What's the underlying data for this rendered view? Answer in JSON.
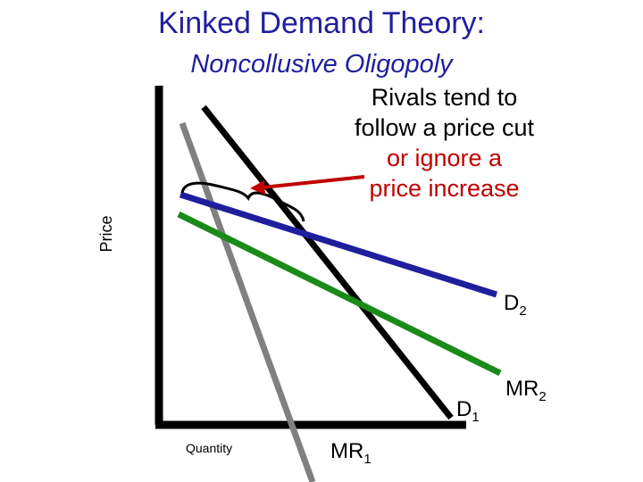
{
  "title": "Kinked Demand Theory:",
  "subtitle": "Noncollusive Oligopoly",
  "note": {
    "line1": "Rivals tend to",
    "line2": "follow a price cut",
    "line3": "or ignore a",
    "line4": "price increase"
  },
  "axes": {
    "y_label": "Price",
    "x_label": "Quantity"
  },
  "curves": {
    "d2": {
      "label": "D",
      "sub": "2",
      "color": "#1f1f9e"
    },
    "mr2": {
      "label": "MR",
      "sub": "2",
      "color": "#1a8a1a"
    },
    "d1": {
      "label": "D",
      "sub": "1",
      "color": "#000000"
    },
    "mr1": {
      "label": "MR",
      "sub": "1",
      "color": "#808080"
    }
  },
  "colors": {
    "title": "#1f1f9e",
    "highlight": "#c00000",
    "arrow": "#c00000"
  }
}
